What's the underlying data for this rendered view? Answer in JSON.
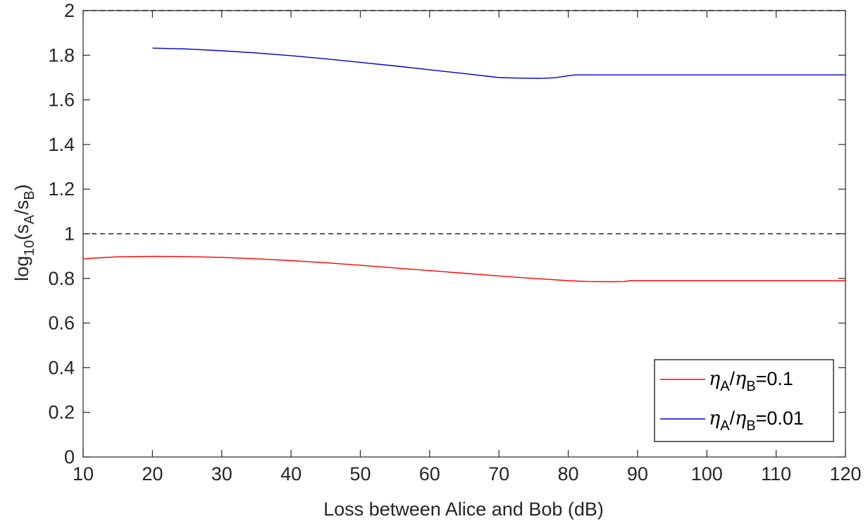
{
  "chart_data": {
    "type": "line",
    "xlabel": "Loss between Alice and Bob (dB)",
    "ylabel": {
      "prefix": "log",
      "prefix_sub": "10",
      "open": "(s",
      "num_sub": "A",
      "slash": "/s",
      "den_sub": "B",
      "close": ")"
    },
    "xlim": [
      10,
      120
    ],
    "ylim": [
      0,
      2
    ],
    "xticks": [
      10,
      20,
      30,
      40,
      50,
      60,
      70,
      80,
      90,
      100,
      110,
      120
    ],
    "yticks": [
      0,
      0.2,
      0.4,
      0.6,
      0.8,
      1,
      1.2,
      1.4,
      1.6,
      1.8,
      2
    ],
    "ytick_labels": [
      "0",
      "0.2",
      "0.4",
      "0.6",
      "0.8",
      "1",
      "1.2",
      "1.4",
      "1.6",
      "1.8",
      "2"
    ],
    "grid": false,
    "legend_position": "bottom-right",
    "reference_line": {
      "y": 1,
      "style": "dashed",
      "color": "#000000"
    },
    "series": [
      {
        "legend": {
          "symbol": "η",
          "sub1": "A",
          "sep": "/",
          "sub2": "B",
          "value": "=0.1"
        },
        "color": "#ff0000",
        "x": [
          10,
          15,
          20,
          25,
          30,
          35,
          40,
          45,
          50,
          55,
          60,
          65,
          70,
          75,
          80,
          83,
          86,
          88,
          89,
          90,
          100,
          110,
          120
        ],
        "y": [
          0.888,
          0.897,
          0.899,
          0.898,
          0.894,
          0.888,
          0.88,
          0.87,
          0.859,
          0.847,
          0.835,
          0.823,
          0.811,
          0.8,
          0.79,
          0.786,
          0.785,
          0.786,
          0.79,
          0.79,
          0.79,
          0.79,
          0.79
        ]
      },
      {
        "legend": {
          "symbol": "η",
          "sub1": "A",
          "sep": "/",
          "sub2": "B",
          "value": "=0.01"
        },
        "color": "#0000cc",
        "x": [
          20,
          25,
          30,
          35,
          40,
          45,
          50,
          55,
          60,
          65,
          70,
          72,
          74,
          76,
          78,
          80,
          81,
          90,
          100,
          110,
          120
        ],
        "y": [
          1.832,
          1.828,
          1.82,
          1.81,
          1.798,
          1.784,
          1.768,
          1.752,
          1.735,
          1.718,
          1.7,
          1.698,
          1.697,
          1.696,
          1.699,
          1.708,
          1.712,
          1.712,
          1.712,
          1.712,
          1.712
        ]
      }
    ]
  }
}
